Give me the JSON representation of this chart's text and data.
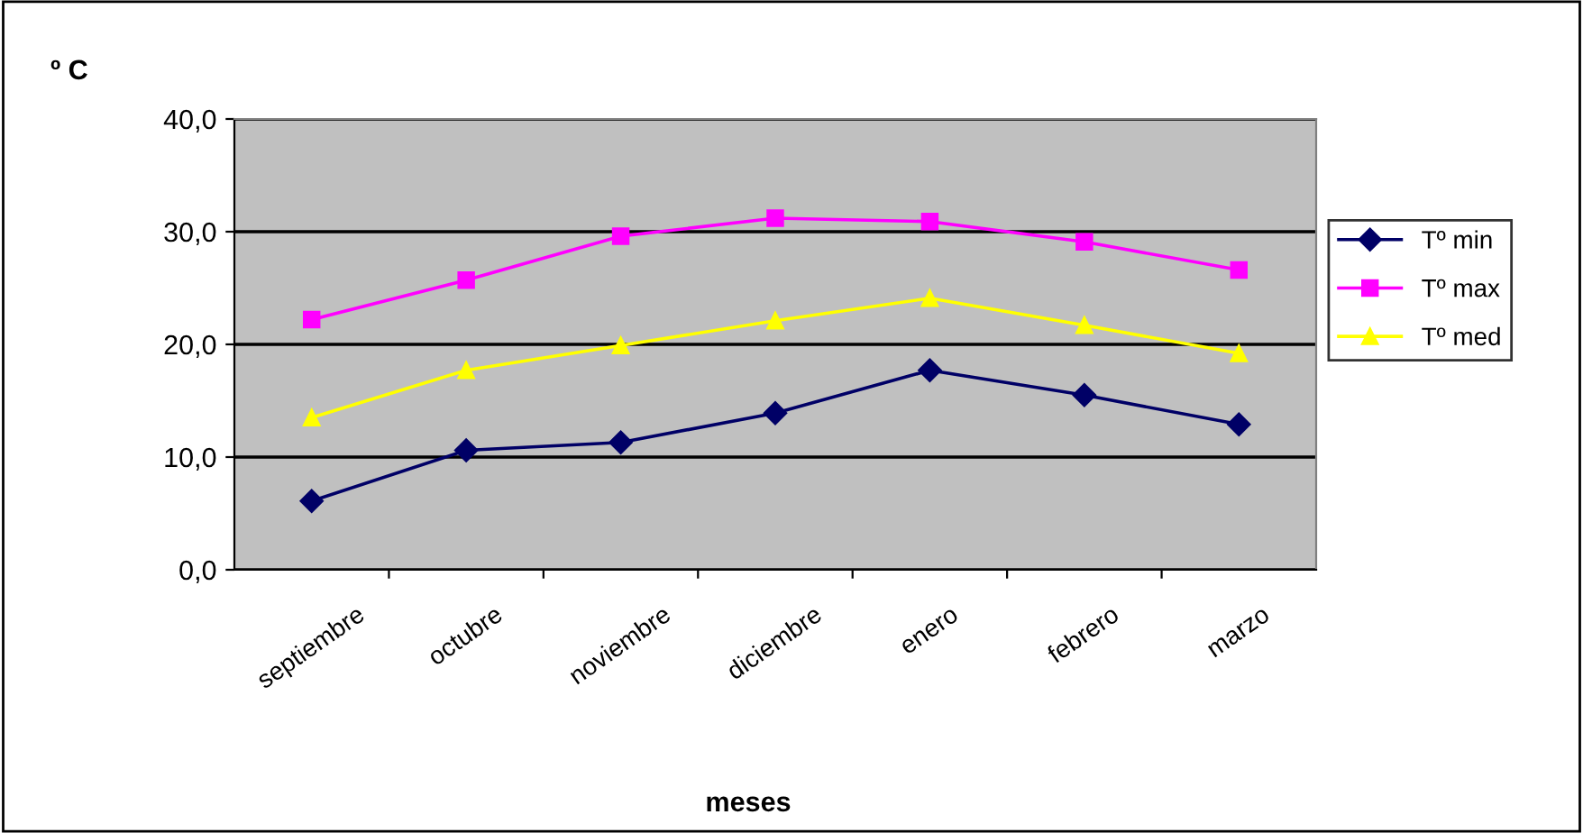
{
  "chart_data": {
    "type": "line",
    "ylabel": "º C",
    "xlabel": "meses",
    "categories": [
      "septiembre",
      "octubre",
      "noviembre",
      "diciembre",
      "enero",
      "febrero",
      "marzo"
    ],
    "series": [
      {
        "name": "Tº min",
        "color": "#000066",
        "marker": "diamond",
        "values": [
          6.1,
          10.6,
          11.3,
          13.9,
          17.7,
          15.5,
          12.9
        ]
      },
      {
        "name": "Tº max",
        "color": "#ff00ff",
        "marker": "square",
        "values": [
          22.2,
          25.7,
          29.6,
          31.2,
          30.9,
          29.1,
          26.6
        ]
      },
      {
        "name": "Tº med",
        "color": "#ffff00",
        "marker": "triangle",
        "values": [
          13.5,
          17.7,
          19.9,
          22.1,
          24.1,
          21.7,
          19.2
        ]
      }
    ],
    "ylim": [
      0,
      40
    ],
    "yticks": [
      {
        "value": 0,
        "label": "0,0"
      },
      {
        "value": 10,
        "label": "10,0"
      },
      {
        "value": 20,
        "label": "20,0"
      },
      {
        "value": 30,
        "label": "30,0"
      },
      {
        "value": 40,
        "label": "40,0"
      }
    ],
    "grid": "y",
    "legend": "right"
  }
}
